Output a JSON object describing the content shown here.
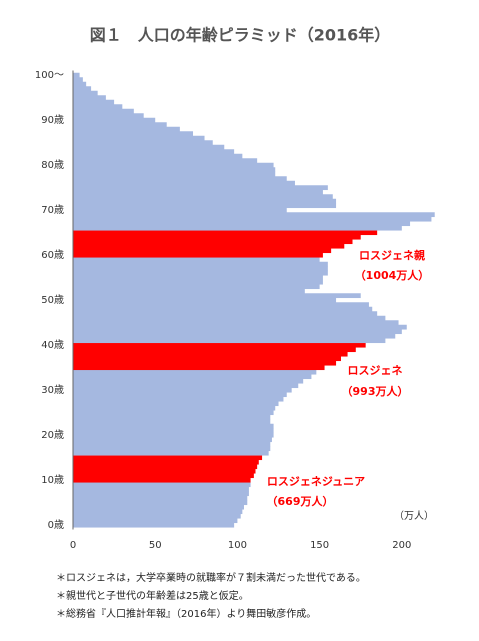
{
  "chart_data": {
    "type": "bar",
    "orientation": "horizontal",
    "title": "図１　人口の年齢ピラミッド（2016年）",
    "categories": [
      "0歳",
      null,
      null,
      null,
      null,
      null,
      null,
      null,
      null,
      null,
      "10歳",
      null,
      null,
      null,
      null,
      null,
      null,
      null,
      null,
      null,
      "20歳",
      null,
      null,
      null,
      null,
      null,
      null,
      null,
      null,
      null,
      "30歳",
      null,
      null,
      null,
      null,
      null,
      null,
      null,
      null,
      null,
      "40歳",
      null,
      null,
      null,
      null,
      null,
      null,
      null,
      null,
      null,
      "50歳",
      null,
      null,
      null,
      null,
      null,
      null,
      null,
      null,
      null,
      "60歳",
      null,
      null,
      null,
      null,
      null,
      null,
      null,
      null,
      null,
      "70歳",
      null,
      null,
      null,
      null,
      null,
      null,
      null,
      null,
      null,
      "80歳",
      null,
      null,
      null,
      null,
      null,
      null,
      null,
      null,
      null,
      "90歳",
      null,
      null,
      null,
      null,
      null,
      null,
      null,
      null,
      null,
      "100～"
    ],
    "values": [
      98,
      100,
      102,
      103,
      104,
      106,
      106,
      107,
      107,
      108,
      108,
      110,
      111,
      112,
      113,
      115,
      119,
      120,
      120,
      121,
      122,
      122,
      122,
      120,
      120,
      122,
      123,
      125,
      128,
      130,
      133,
      137,
      140,
      145,
      148,
      153,
      160,
      163,
      167,
      172,
      178,
      190,
      196,
      200,
      203,
      198,
      190,
      185,
      182,
      180,
      160,
      175,
      141,
      150,
      152,
      152,
      155,
      155,
      155,
      150,
      152,
      157,
      165,
      170,
      175,
      185,
      200,
      205,
      218,
      220,
      130,
      160,
      160,
      158,
      152,
      155,
      135,
      130,
      123,
      123,
      122,
      112,
      103,
      98,
      92,
      85,
      80,
      73,
      65,
      57,
      50,
      43,
      37,
      30,
      25,
      20,
      15,
      11,
      8,
      6,
      4
    ],
    "colors": [
      "#a5b8e0",
      "#a5b8e0",
      "#a5b8e0",
      "#a5b8e0",
      "#a5b8e0",
      "#a5b8e0",
      "#a5b8e0",
      "#a5b8e0",
      "#a5b8e0",
      "#a5b8e0",
      "#ff0000",
      "#ff0000",
      "#ff0000",
      "#ff0000",
      "#ff0000",
      "#ff0000",
      "#a5b8e0",
      "#a5b8e0",
      "#a5b8e0",
      "#a5b8e0",
      "#a5b8e0",
      "#a5b8e0",
      "#a5b8e0",
      "#a5b8e0",
      "#a5b8e0",
      "#a5b8e0",
      "#a5b8e0",
      "#a5b8e0",
      "#a5b8e0",
      "#a5b8e0",
      "#a5b8e0",
      "#a5b8e0",
      "#a5b8e0",
      "#a5b8e0",
      "#a5b8e0",
      "#ff0000",
      "#ff0000",
      "#ff0000",
      "#ff0000",
      "#ff0000",
      "#ff0000",
      "#a5b8e0",
      "#a5b8e0",
      "#a5b8e0",
      "#a5b8e0",
      "#a5b8e0",
      "#a5b8e0",
      "#a5b8e0",
      "#a5b8e0",
      "#a5b8e0",
      "#a5b8e0",
      "#a5b8e0",
      "#a5b8e0",
      "#a5b8e0",
      "#a5b8e0",
      "#a5b8e0",
      "#a5b8e0",
      "#a5b8e0",
      "#a5b8e0",
      "#a5b8e0",
      "#ff0000",
      "#ff0000",
      "#ff0000",
      "#ff0000",
      "#ff0000",
      "#ff0000",
      "#a5b8e0",
      "#a5b8e0",
      "#a5b8e0",
      "#a5b8e0",
      "#a5b8e0",
      "#a5b8e0",
      "#a5b8e0",
      "#a5b8e0",
      "#a5b8e0",
      "#a5b8e0",
      "#a5b8e0",
      "#a5b8e0",
      "#a5b8e0",
      "#a5b8e0",
      "#a5b8e0",
      "#a5b8e0",
      "#a5b8e0",
      "#a5b8e0",
      "#a5b8e0",
      "#a5b8e0",
      "#a5b8e0",
      "#a5b8e0",
      "#a5b8e0",
      "#a5b8e0",
      "#a5b8e0",
      "#a5b8e0",
      "#a5b8e0",
      "#a5b8e0",
      "#a5b8e0",
      "#a5b8e0",
      "#a5b8e0",
      "#a5b8e0",
      "#a5b8e0",
      "#a5b8e0",
      "#a5b8e0"
    ],
    "xlim": [
      0,
      222
    ],
    "xticks": [
      0,
      50,
      100,
      150,
      200
    ],
    "x_unit": "（万人）",
    "annotations": [
      "ロスジェネ親",
      "（1004万人）",
      "ロスジェネ",
      "（993万人）",
      "ロスジェネジュニア",
      "（669万人）"
    ],
    "notes": [
      "＊ロスジェネは，大学卒業時の就職率が７割未満だった世代である。",
      "＊親世代と子世代の年齢差は25歳と仮定。",
      "＊総務省『人口推計年報』（2016年）より舞田敏彦作成。"
    ]
  }
}
